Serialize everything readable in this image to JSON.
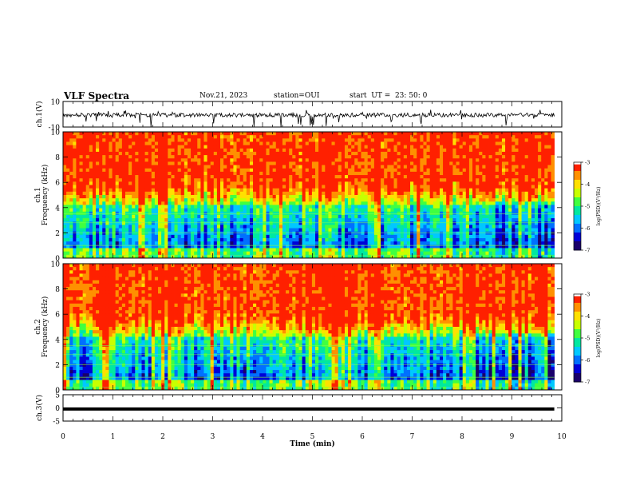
{
  "header": {
    "title": "VLF Spectra",
    "date": "Nov.21, 2023",
    "station": "station=OUI",
    "start_ut": "start  UT =  23: 50: 0"
  },
  "chart_data": {
    "type": "heatmap",
    "xlabel": "Time  (min)",
    "xlim": [
      0,
      10
    ],
    "xticks": [
      "0",
      "1",
      "2",
      "3",
      "4",
      "5",
      "6",
      "7",
      "8",
      "9",
      "10"
    ],
    "data_end_min": 9.85,
    "panels": [
      {
        "id": "ch1-waveform",
        "kind": "waveform",
        "ylabel": "ch.1(V)",
        "ylim": [
          -10,
          10
        ],
        "yticks": [
          "10",
          "-10"
        ]
      },
      {
        "id": "ch1-spectrogram",
        "kind": "spectrogram",
        "ylabel_top": "ch.1",
        "ylabel": "Frequency  (kHz)",
        "ylim": [
          0,
          10
        ],
        "yticks": [
          "0",
          "2",
          "4",
          "6",
          "8",
          "10"
        ]
      },
      {
        "id": "ch2-spectrogram",
        "kind": "spectrogram",
        "ylabel_top": "ch.2",
        "ylabel": "Frequency  (kHz)",
        "ylim": [
          0,
          10
        ],
        "yticks": [
          "0",
          "2",
          "4",
          "6",
          "8",
          "10"
        ]
      },
      {
        "id": "ch3-waveform",
        "kind": "flat",
        "ylabel": "ch.3(V)",
        "ylim": [
          -5,
          5
        ],
        "yticks": [
          "5",
          "0",
          "-5"
        ],
        "value": -0.4
      }
    ],
    "colorbar": {
      "label": "log(PSD)(V²/Hz)",
      "range": [
        -7,
        -3
      ],
      "ticks": [
        "-3",
        "-4",
        "-5",
        "-6",
        "-7"
      ],
      "colors": [
        "#1a006b",
        "#0000d8",
        "#0070ff",
        "#00c8ff",
        "#00e8a0",
        "#40ff40",
        "#c8ff00",
        "#ffe000",
        "#ff9000",
        "#ff2000"
      ]
    }
  }
}
